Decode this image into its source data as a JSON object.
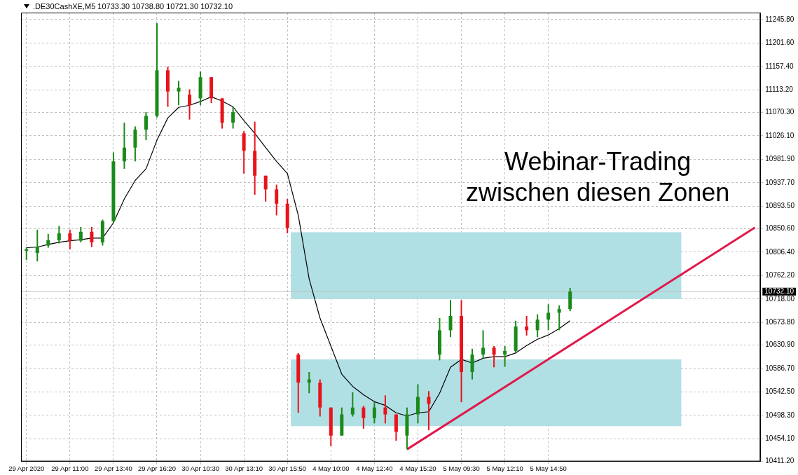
{
  "chart_data": {
    "type": "candlestick",
    "title": ".DE30CashXE,M5  10733.30 10738.80 10721.30 10732.10",
    "categories": [
      "29 Apr 2020",
      null,
      null,
      null,
      "29 Apr 11:00",
      null,
      null,
      null,
      "29 Apr 13:40",
      null,
      null,
      null,
      "29 Apr 16:20",
      null,
      null,
      null,
      "30 Apr 10:30",
      null,
      null,
      null,
      "30 Apr 13:10",
      null,
      null,
      null,
      "30 Apr 15:50",
      null,
      null,
      null,
      "4 May 10:00",
      null,
      null,
      null,
      "4 May 12:40",
      null,
      null,
      null,
      "4 May 15:20",
      null,
      null,
      null,
      "5 May 09:30",
      null,
      null,
      null,
      "5 May 12:10",
      null,
      null,
      null,
      "5 May 14:50",
      null,
      null,
      null,
      null,
      null,
      null,
      null,
      null,
      null,
      null,
      null,
      null,
      null,
      null,
      null,
      null,
      null,
      null,
      null
    ],
    "ohlc": [
      [
        10809,
        10816,
        10792,
        10812
      ],
      [
        10805,
        10849,
        10789,
        10816
      ],
      [
        10819,
        10841,
        10815,
        10829
      ],
      [
        10829,
        10856,
        10823,
        10842
      ],
      [
        10842,
        10849,
        10812,
        10828
      ],
      [
        10828,
        10854,
        10825,
        10845
      ],
      [
        10845,
        10854,
        10816,
        10825
      ],
      [
        10825,
        10868,
        10819,
        10865
      ],
      [
        10865,
        10995,
        10862,
        10978
      ],
      [
        10978,
        11051,
        10964,
        11004
      ],
      [
        11004,
        11044,
        10978,
        11038
      ],
      [
        11038,
        11071,
        11018,
        11064
      ],
      [
        11064,
        11239,
        11061,
        11150
      ],
      [
        11150,
        11157,
        11081,
        11110
      ],
      [
        11110,
        11130,
        11084,
        11117
      ],
      [
        11104,
        11114,
        11057,
        11084
      ],
      [
        11097,
        11148,
        11084,
        11137
      ],
      [
        11137,
        11137,
        11088,
        11097
      ],
      [
        11097,
        11097,
        11040,
        11051
      ],
      [
        11051,
        11081,
        11040,
        11071
      ],
      [
        11031,
        11035,
        10955,
        10998
      ],
      [
        10998,
        11053,
        10915,
        10951
      ],
      [
        10951,
        10951,
        10902,
        10925
      ],
      [
        10925,
        10934,
        10876,
        10898
      ],
      [
        10898,
        10907,
        10842,
        10852
      ],
      [
        10613,
        10616,
        10503,
        10560
      ],
      [
        10560,
        10580,
        10540,
        10566
      ],
      [
        10560,
        10566,
        10496,
        10513
      ],
      [
        10513,
        10513,
        10440,
        10460
      ],
      [
        10460,
        10513,
        10460,
        10500
      ],
      [
        10500,
        10542,
        10496,
        10513
      ],
      [
        10513,
        10516,
        10473,
        10493
      ],
      [
        10493,
        10523,
        10483,
        10513
      ],
      [
        10513,
        10536,
        10483,
        10500
      ],
      [
        10500,
        10500,
        10450,
        10467
      ],
      [
        10460,
        10513,
        10434,
        10500
      ],
      [
        10500,
        10557,
        10483,
        10533
      ],
      [
        10533,
        10544,
        10470,
        10520
      ],
      [
        10613,
        10682,
        10602,
        10659
      ],
      [
        10659,
        10716,
        10646,
        10686
      ],
      [
        10686,
        10716,
        10523,
        10580
      ],
      [
        10580,
        10624,
        10566,
        10613
      ],
      [
        10613,
        10659,
        10606,
        10626
      ],
      [
        10626,
        10629,
        10589,
        10613
      ],
      [
        10613,
        10629,
        10590,
        10620
      ],
      [
        10620,
        10677,
        10616,
        10666
      ],
      [
        10666,
        10686,
        10649,
        10659
      ],
      [
        10659,
        10689,
        10646,
        10679
      ],
      [
        10679,
        10708,
        10659,
        10692
      ],
      [
        10692,
        10706,
        10659,
        10699
      ],
      [
        10699,
        10738.8,
        10695,
        10732.1
      ],
      null,
      null,
      null,
      null,
      null,
      null,
      null,
      null,
      null,
      null,
      null,
      null,
      null,
      null,
      null,
      null,
      null
    ],
    "colors": [
      "#1a8a1a",
      "#1a8a1a",
      "#1a8a1a",
      "#1a8a1a",
      "#e8131b",
      "#1a8a1a",
      "#e8131b",
      "#1a8a1a",
      "#1a8a1a",
      "#1a8a1a",
      "#1a8a1a",
      "#1a8a1a",
      "#1a8a1a",
      "#e8131b",
      "#1a8a1a",
      "#e8131b",
      "#1a8a1a",
      "#e8131b",
      "#e8131b",
      "#1a8a1a",
      "#e8131b",
      "#e8131b",
      "#e8131b",
      "#e8131b",
      "#e8131b",
      "#e8131b",
      "#1a8a1a",
      "#e8131b",
      "#e8131b",
      "#1a8a1a",
      "#1a8a1a",
      "#e8131b",
      "#1a8a1a",
      "#e8131b",
      "#e8131b",
      "#1a8a1a",
      "#1a8a1a",
      "#e8131b",
      "#1a8a1a",
      "#1a8a1a",
      "#e8131b",
      "#1a8a1a",
      "#1a8a1a",
      "#e8131b",
      "#1a8a1a",
      "#1a8a1a",
      "#e8131b",
      "#1a8a1a",
      "#1a8a1a",
      "#1a8a1a",
      "#1a8a1a",
      null,
      null,
      null,
      null,
      null,
      null,
      null,
      null,
      null,
      null,
      null,
      null,
      null,
      null,
      null,
      null,
      null
    ],
    "series": [
      {
        "type": "line",
        "color": "#000000",
        "values": [
          10815,
          10816,
          10821,
          10825,
          10828,
          10830,
          10833,
          10833,
          10862,
          10907,
          10942,
          10964,
          11018,
          11060,
          11080,
          11084,
          11091,
          11100,
          11092,
          11081,
          11055,
          11031,
          11004,
          10978,
          10955,
          10876,
          10756,
          10682,
          10629,
          10576,
          10553,
          10537,
          10524,
          10517,
          10503,
          10497,
          10503,
          10505,
          10540,
          10589,
          10604,
          10597,
          10606,
          10609,
          10609,
          10616,
          10630,
          10642,
          10650,
          10662,
          10677,
          null,
          null,
          null,
          null,
          null,
          null,
          null,
          null,
          null,
          null,
          null,
          null,
          null,
          null,
          null,
          null,
          null
        ]
      },
      {
        "type": "line",
        "color": "#e0194b",
        "values": [
          null,
          null,
          null,
          null,
          null,
          null,
          null,
          null,
          null,
          null,
          null,
          null,
          null,
          null,
          null,
          null,
          null,
          null,
          null,
          null,
          null,
          null,
          null,
          null,
          null,
          null,
          null,
          null,
          null,
          null,
          null,
          null,
          null,
          null,
          null,
          10434,
          null,
          null,
          null,
          null,
          null,
          null,
          null,
          null,
          null,
          null,
          null,
          null,
          null,
          null,
          null,
          null,
          null,
          null,
          null,
          null,
          null,
          null,
          null,
          null,
          null,
          null,
          null,
          null,
          null,
          null,
          null,
          10853
        ]
      }
    ],
    "ylim": [
      10411.2,
      11259
    ],
    "yticks": [
      {
        "value": 10411.2,
        "label": "10411.20"
      },
      {
        "value": 10454.1,
        "label": "10454.10"
      },
      {
        "value": 10498.3,
        "label": "10498.30"
      },
      {
        "value": 10542.5,
        "label": "10542.50"
      },
      {
        "value": 10586.7,
        "label": "10586.70"
      },
      {
        "value": 10630.9,
        "label": "10630.90"
      },
      {
        "value": 10673.8,
        "label": "10673.80"
      },
      {
        "value": 10718,
        "label": "10718.00"
      },
      {
        "value": 10762.2,
        "label": "10762.20"
      },
      {
        "value": 10806.4,
        "label": "10806.40"
      },
      {
        "value": 10850.6,
        "label": "10850.60"
      },
      {
        "value": 10893.5,
        "label": "10893.50"
      },
      {
        "value": 10937.7,
        "label": "10937.70"
      },
      {
        "value": 10981.9,
        "label": "10981.90"
      },
      {
        "value": 11026.1,
        "label": "11026.10"
      },
      {
        "value": 11070.3,
        "label": "11070.30"
      },
      {
        "value": 11113.2,
        "label": "11113.20"
      },
      {
        "value": 11157.4,
        "label": "11157.40"
      },
      {
        "value": 11201.6,
        "label": "11201.60"
      },
      {
        "value": 11245.8,
        "label": "11245.80"
      }
    ],
    "bands": [
      {
        "axis": "y",
        "from": 10718,
        "to": 10844,
        "color": "#b0dfe4"
      },
      {
        "axis": "y",
        "from": 10478,
        "to": 10604,
        "color": "#b0dfe4"
      }
    ],
    "ref_lines": [
      {
        "axis": "y",
        "value": 10732.1,
        "label": "10732.10",
        "color": "#c0c0c0"
      }
    ],
    "annotations": [
      "Webinar-Trading",
      "zwischen diesen Zonen"
    ],
    "grid": true
  }
}
